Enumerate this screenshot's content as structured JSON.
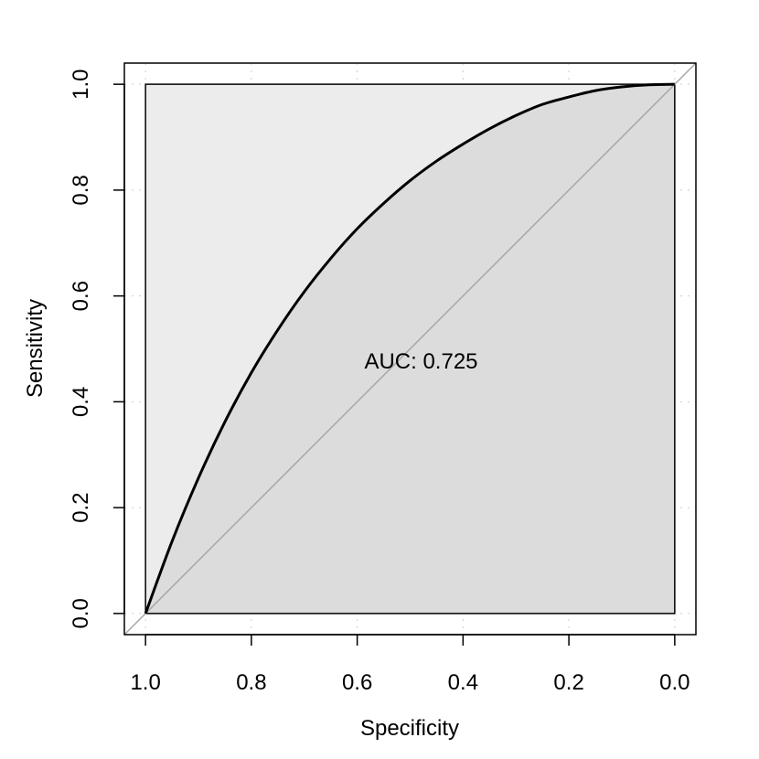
{
  "chart_data": {
    "type": "line",
    "title": "",
    "xlabel": "Specificity",
    "ylabel": "Sensitivity",
    "xlim": [
      1.04,
      -0.04
    ],
    "ylim": [
      -0.04,
      1.04
    ],
    "x_reversed": true,
    "x_ticks": [
      1.0,
      0.8,
      0.6,
      0.4,
      0.2,
      0.0
    ],
    "x_tick_labels": [
      "1.0",
      "0.8",
      "0.6",
      "0.4",
      "0.2",
      "0.0"
    ],
    "y_ticks": [
      0.0,
      0.2,
      0.4,
      0.6,
      0.8,
      1.0
    ],
    "y_tick_labels": [
      "0.0",
      "0.2",
      "0.4",
      "0.6",
      "0.8",
      "1.0"
    ],
    "grid": true,
    "series": [
      {
        "specificity": [
          1.0,
          0.95,
          0.9,
          0.85,
          0.8,
          0.75,
          0.7,
          0.65,
          0.6,
          0.55,
          0.5,
          0.45,
          0.4,
          0.35,
          0.3,
          0.25,
          0.2,
          0.15,
          0.1,
          0.05,
          0.0
        ],
        "sensitivity": [
          0.0,
          0.136,
          0.256,
          0.362,
          0.455,
          0.536,
          0.608,
          0.671,
          0.727,
          0.775,
          0.818,
          0.855,
          0.887,
          0.916,
          0.941,
          0.962,
          0.976,
          0.988,
          0.995,
          0.999,
          1.0
        ]
      }
    ],
    "reference_line": {
      "from": [
        1.0,
        0.0
      ],
      "to": [
        0.0,
        1.0
      ]
    },
    "annotation": {
      "text": "AUC: 0.725",
      "x": 0.5,
      "y": 0.477
    },
    "colors": {
      "curve": "#000000",
      "auc_fill": "#dcdcdc",
      "upper_fill": "#ececec",
      "reference": "#a6a6a6",
      "grid": "#cccccc"
    }
  }
}
